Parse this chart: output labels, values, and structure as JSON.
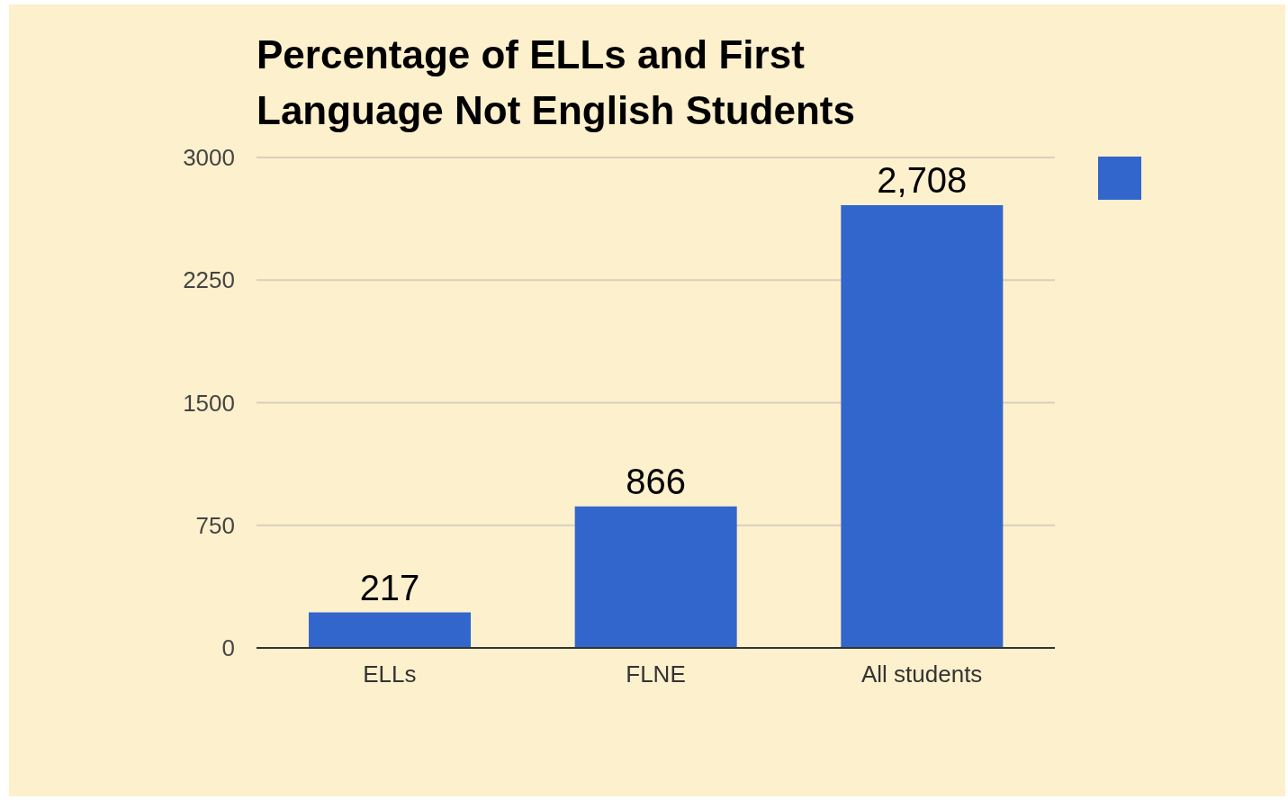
{
  "chart_data": {
    "type": "bar",
    "title": "Percentage of ELLs and First Language Not English Students",
    "categories": [
      "ELLs",
      "FLNE",
      "All students"
    ],
    "series": [
      {
        "color": "#3366cc",
        "values": [
          217,
          866,
          2708
        ],
        "value_labels": [
          "217",
          "866",
          "2,708"
        ]
      }
    ],
    "ylim": [
      0,
      3000
    ],
    "yticks": [
      0,
      750,
      1500,
      2250,
      3000
    ],
    "grid": "y"
  }
}
